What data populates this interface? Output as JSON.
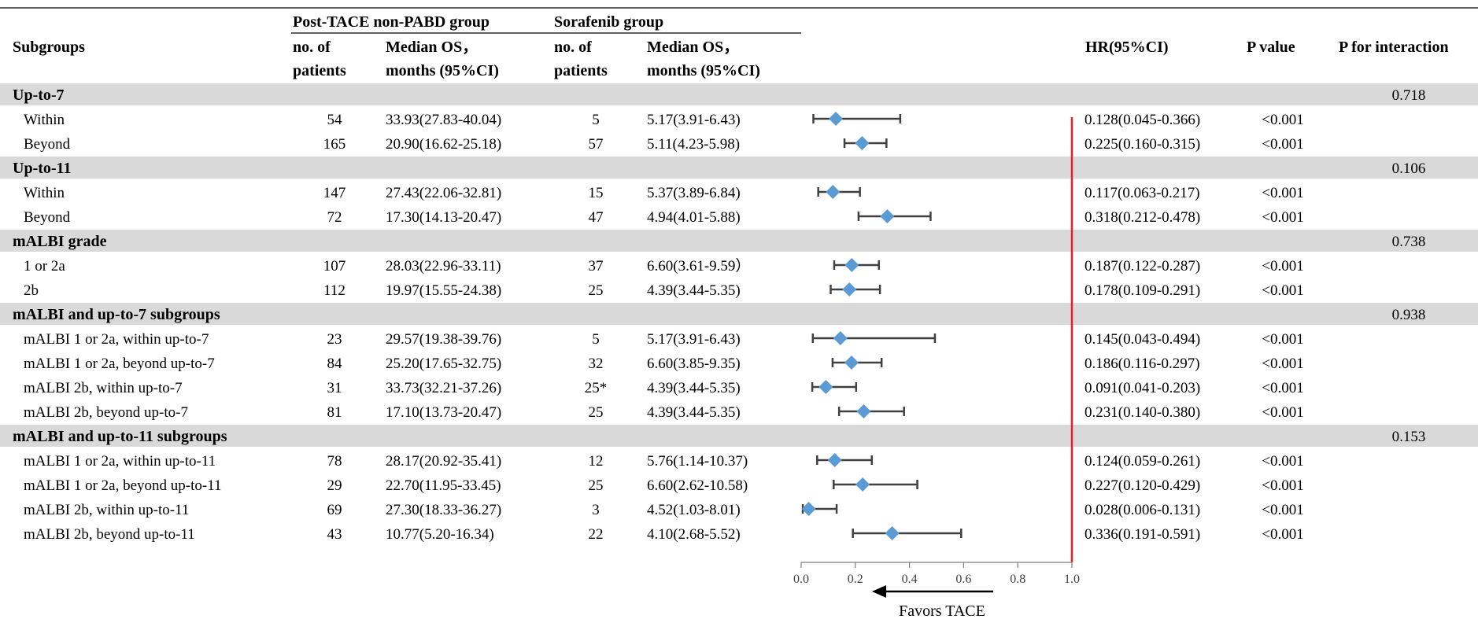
{
  "header": {
    "group1": "Post-TACE non-PABD group",
    "group2": "Sorafenib group",
    "subgroups": "Subgroups",
    "n_label_1": "no. of",
    "n_label_2": "patients",
    "os_label_1": "Median OS，",
    "os_label_2": "months (95%CI)",
    "hr": "HR(95%CI)",
    "pvalue": "P value",
    "pinteraction": "P for interaction"
  },
  "rows": [
    {
      "kind": "section",
      "label": "Up-to-7",
      "p_interaction": "0.718"
    },
    {
      "kind": "data",
      "label": "Within",
      "n1": "54",
      "os1": "33.93(27.83-40.04)",
      "n2": "5",
      "os2": "5.17(3.91-6.43)",
      "hr_text": "0.128(0.045-0.366)",
      "p": "<0.001"
    },
    {
      "kind": "data",
      "label": "Beyond",
      "n1": "165",
      "os1": "20.90(16.62-25.18)",
      "n2": "57",
      "os2": "5.11(4.23-5.98)",
      "hr_text": "0.225(0.160-0.315)",
      "p": "<0.001"
    },
    {
      "kind": "section",
      "label": "Up-to-11",
      "p_interaction": "0.106"
    },
    {
      "kind": "data",
      "label": "Within",
      "n1": "147",
      "os1": "27.43(22.06-32.81)",
      "n2": "15",
      "os2": "5.37(3.89-6.84)",
      "hr_text": "0.117(0.063-0.217)",
      "p": "<0.001"
    },
    {
      "kind": "data",
      "label": "Beyond",
      "n1": "72",
      "os1": "17.30(14.13-20.47)",
      "n2": "47",
      "os2": "4.94(4.01-5.88)",
      "hr_text": "0.318(0.212-0.478)",
      "p": "<0.001"
    },
    {
      "kind": "section",
      "label": "mALBI grade",
      "p_interaction": "0.738"
    },
    {
      "kind": "data",
      "label": "1 or 2a",
      "n1": "107",
      "os1": "28.03(22.96-33.11)",
      "n2": "37",
      "os2": "6.60(3.61-9.59）",
      "hr_text": "0.187(0.122-0.287)",
      "p": "<0.001"
    },
    {
      "kind": "data",
      "label": "2b",
      "n1": "112",
      "os1": "19.97(15.55-24.38)",
      "n2": "25",
      "os2": "4.39(3.44-5.35)",
      "hr_text": "0.178(0.109-0.291)",
      "p": "<0.001"
    },
    {
      "kind": "section",
      "label": "mALBI and up-to-7 subgroups",
      "p_interaction": "0.938"
    },
    {
      "kind": "data",
      "label": "mALBI 1 or 2a, within up-to-7",
      "n1": "23",
      "os1": "29.57(19.38-39.76)",
      "n2": "5",
      "os2": "5.17(3.91-6.43)",
      "hr_text": "0.145(0.043-0.494)",
      "p": "<0.001"
    },
    {
      "kind": "data",
      "label": "mALBI 1 or 2a, beyond up-to-7",
      "n1": "84",
      "os1": "25.20(17.65-32.75)",
      "n2": "32",
      "os2": "6.60(3.85-9.35)",
      "hr_text": "0.186(0.116-0.297)",
      "p": "<0.001"
    },
    {
      "kind": "data",
      "label": "mALBI 2b, within up-to-7",
      "n1": "31",
      "os1": "33.73(32.21-37.26)",
      "n2": "25*",
      "os2": "4.39(3.44-5.35)",
      "hr_text": "0.091(0.041-0.203)",
      "p": "<0.001"
    },
    {
      "kind": "data",
      "label": "mALBI 2b, beyond up-to-7",
      "n1": "81",
      "os1": "17.10(13.73-20.47)",
      "n2": "25",
      "os2": "4.39(3.44-5.35)",
      "hr_text": "0.231(0.140-0.380)",
      "p": "<0.001"
    },
    {
      "kind": "section",
      "label": "mALBI and up-to-11 subgroups",
      "p_interaction": "0.153"
    },
    {
      "kind": "data",
      "label": "mALBI 1 or 2a, within up-to-11",
      "n1": "78",
      "os1": "28.17(20.92-35.41)",
      "n2": "12",
      "os2": "5.76(1.14-10.37)",
      "hr_text": "0.124(0.059-0.261)",
      "p": "<0.001"
    },
    {
      "kind": "data",
      "label": "mALBI 1 or 2a, beyond up-to-11",
      "n1": "29",
      "os1": "22.70(11.95-33.45)",
      "n2": "25",
      "os2": "6.60(2.62-10.58)",
      "hr_text": "0.227(0.120-0.429)",
      "p": "<0.001"
    },
    {
      "kind": "data",
      "label": "mALBI 2b, within up-to-11",
      "n1": "69",
      "os1": "27.30(18.33-36.27)",
      "n2": "3",
      "os2": "4.52(1.03-8.01)",
      "hr_text": "0.028(0.006-0.131)",
      "p": "<0.001"
    },
    {
      "kind": "data",
      "label": "mALBI 2b, beyond up-to-11",
      "n1": "43",
      "os1": "10.77(5.20-16.34)",
      "n2": "22",
      "os2": "4.10(2.68-5.52)",
      "hr_text": "0.336(0.191-0.591)",
      "p": "<0.001"
    }
  ],
  "chart_data": {
    "type": "forest",
    "xlim": [
      0.0,
      1.0
    ],
    "ticks": [
      "0.0",
      "0.2",
      "0.4",
      "0.6",
      "0.8",
      "1.0"
    ],
    "tick_values": [
      0,
      0.2,
      0.4,
      0.6,
      0.8,
      1.0
    ],
    "reference_line": 1.0,
    "arrow_label": "Favors TACE",
    "points": [
      {
        "label": "Up-to-7 Within",
        "hr": 0.128,
        "lo": 0.045,
        "hi": 0.366
      },
      {
        "label": "Up-to-7 Beyond",
        "hr": 0.225,
        "lo": 0.16,
        "hi": 0.315
      },
      {
        "label": "Up-to-11 Within",
        "hr": 0.117,
        "lo": 0.063,
        "hi": 0.217
      },
      {
        "label": "Up-to-11 Beyond",
        "hr": 0.318,
        "lo": 0.212,
        "hi": 0.478
      },
      {
        "label": "mALBI 1 or 2a",
        "hr": 0.187,
        "lo": 0.122,
        "hi": 0.287
      },
      {
        "label": "mALBI 2b",
        "hr": 0.178,
        "lo": 0.109,
        "hi": 0.291
      },
      {
        "label": "mALBI 1 or 2a, within up-to-7",
        "hr": 0.145,
        "lo": 0.043,
        "hi": 0.494
      },
      {
        "label": "mALBI 1 or 2a, beyond up-to-7",
        "hr": 0.186,
        "lo": 0.116,
        "hi": 0.297
      },
      {
        "label": "mALBI 2b, within up-to-7",
        "hr": 0.091,
        "lo": 0.041,
        "hi": 0.203
      },
      {
        "label": "mALBI 2b, beyond up-to-7",
        "hr": 0.231,
        "lo": 0.14,
        "hi": 0.38
      },
      {
        "label": "mALBI 1 or 2a, within up-to-11",
        "hr": 0.124,
        "lo": 0.059,
        "hi": 0.261
      },
      {
        "label": "mALBI 1 or 2a, beyond up-to-11",
        "hr": 0.227,
        "lo": 0.12,
        "hi": 0.429
      },
      {
        "label": "mALBI 2b, within up-to-11",
        "hr": 0.028,
        "lo": 0.006,
        "hi": 0.131
      },
      {
        "label": "mALBI 2b, beyond up-to-11",
        "hr": 0.336,
        "lo": 0.191,
        "hi": 0.591
      }
    ],
    "colors": {
      "marker": "#5b9bd5",
      "ci_line": "#404040",
      "reference_line": "#e8202a",
      "section_band": "#d9d9d9",
      "axis": "#7f7f7f"
    }
  }
}
